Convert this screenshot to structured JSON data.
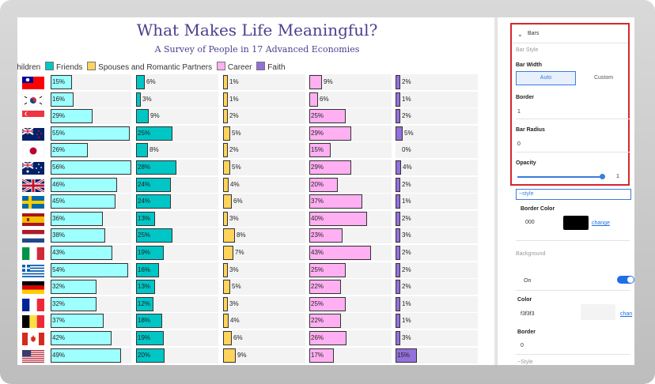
{
  "chart": {
    "title": "What Makes Life Meaningful?",
    "subtitle": "A Survey of People in 17 Advanced Economies",
    "legend": [
      {
        "label": "Children",
        "color": "#ffffff"
      },
      {
        "label": "Friends",
        "color": "#00c6c6"
      },
      {
        "label": "Spouses and Romantic Partners",
        "color": "#ffd35c"
      },
      {
        "label": "Career",
        "color": "#ffb0f2"
      },
      {
        "label": "Faith",
        "color": "#9370db"
      }
    ]
  },
  "chart_data": {
    "type": "bar",
    "title": "What Makes Life Meaningful?",
    "subtitle": "A Survey of People in 17 Advanced Economies",
    "categories": [
      "Taiwan",
      "South Korea",
      "Singapore",
      "New Zealand",
      "Japan",
      "Australia",
      "United Kingdom",
      "Sweden",
      "Spain",
      "Netherlands",
      "Italy",
      "Greece",
      "Germany",
      "France",
      "Belgium",
      "Canada",
      "United States"
    ],
    "series": [
      {
        "name": "Children",
        "color": "#9effff",
        "values": [
          15,
          16,
          29,
          55,
          26,
          56,
          46,
          45,
          36,
          38,
          43,
          54,
          32,
          32,
          37,
          42,
          49
        ]
      },
      {
        "name": "Friends",
        "color": "#00c6c6",
        "values": [
          6,
          3,
          9,
          25,
          8,
          28,
          24,
          24,
          13,
          25,
          19,
          16,
          13,
          12,
          18,
          19,
          20
        ]
      },
      {
        "name": "Spouses and Romantic Partners",
        "color": "#ffd35c",
        "values": [
          1,
          1,
          2,
          5,
          2,
          5,
          4,
          6,
          3,
          8,
          7,
          3,
          5,
          3,
          4,
          6,
          9
        ]
      },
      {
        "name": "Career",
        "color": "#ffb0f2",
        "values": [
          9,
          6,
          25,
          29,
          15,
          29,
          20,
          37,
          40,
          23,
          43,
          25,
          22,
          25,
          22,
          26,
          17
        ]
      },
      {
        "name": "Faith",
        "color": "#9370db",
        "values": [
          2,
          1,
          2,
          5,
          0,
          4,
          2,
          1,
          2,
          3,
          2,
          2,
          2,
          1,
          1,
          3,
          15
        ]
      }
    ]
  },
  "panel": {
    "section_title": "Bars",
    "bar_style_label": "Bar Style",
    "bar_width_label": "Bar Width",
    "auto_label": "Auto",
    "custom_label": "Custom",
    "border_label": "Border",
    "border_value": "1",
    "bar_radius_label": "Bar Radius",
    "bar_radius_value": "0",
    "opacity_label": "Opacity",
    "opacity_value": "1",
    "opacity_level": 1,
    "style_placeholder": "~style",
    "border_color_label": "Border Color",
    "border_color_value": "000",
    "change_label": "change",
    "background_label": "Background",
    "on_label": "On",
    "color_label": "Color",
    "color_value": "f3f3f3",
    "change_label_2": "chan",
    "border2_label": "Border",
    "border2_value": "0",
    "cut_label": "~Style"
  }
}
